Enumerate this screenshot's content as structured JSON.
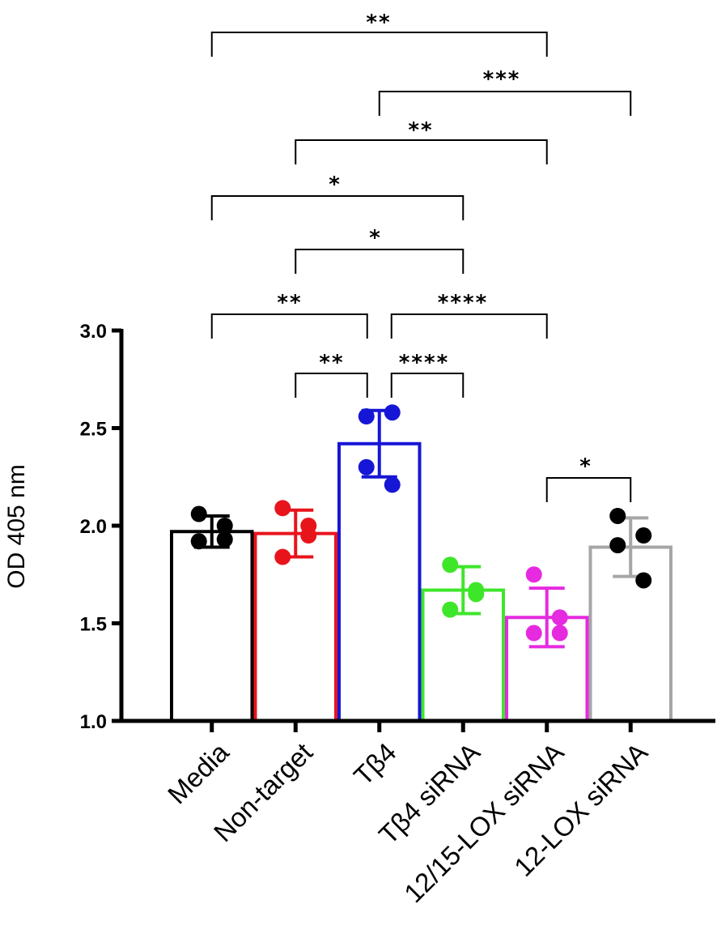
{
  "chart_data": {
    "type": "bar",
    "title": "",
    "xlabel": "",
    "ylabel": "OD 405 nm",
    "ylim": [
      1.0,
      3.0
    ],
    "yticks": [
      {
        "value": 1.0,
        "label": "1.0"
      },
      {
        "value": 1.5,
        "label": "1.5"
      },
      {
        "value": 2.0,
        "label": "2.0"
      },
      {
        "value": 2.5,
        "label": "2.5"
      },
      {
        "value": 3.0,
        "label": "3.0"
      }
    ],
    "categories": [
      "Media",
      "Non-target",
      "Tβ4",
      "Tβ4 siRNA",
      "12/15-LOX siRNA",
      "12-LOX siRNA"
    ],
    "colors": [
      "#000000",
      "#e8141c",
      "#1616d6",
      "#3ee62a",
      "#e62ae0",
      "#a6a6a6"
    ],
    "values": [
      1.97,
      1.96,
      2.42,
      1.67,
      1.53,
      1.89
    ],
    "sd": [
      0.08,
      0.12,
      0.17,
      0.12,
      0.15,
      0.15
    ],
    "points": [
      [
        2.06,
        2.0,
        1.92,
        1.93
      ],
      [
        2.09,
        2.0,
        1.84,
        1.95
      ],
      [
        2.56,
        2.58,
        2.3,
        2.21
      ],
      [
        1.8,
        1.67,
        1.57,
        1.65
      ],
      [
        1.75,
        1.53,
        1.45,
        1.45
      ],
      [
        2.05,
        1.95,
        1.9,
        1.72
      ]
    ],
    "point_color_override": {
      "5": "#000000"
    },
    "comparisons": [
      {
        "from": 0,
        "to": 4,
        "label": "**"
      },
      {
        "from": 2,
        "to": 5,
        "label": "***"
      },
      {
        "from": 1,
        "to": 4,
        "label": "**"
      },
      {
        "from": 0,
        "to": 3,
        "label": "*"
      },
      {
        "from": 1,
        "to": 3,
        "label": "*"
      },
      {
        "from": 0,
        "to": 2,
        "label": "**"
      },
      {
        "from": 2,
        "to": 4,
        "label": "****"
      },
      {
        "from": 1,
        "to": 2,
        "label": "**"
      },
      {
        "from": 2,
        "to": 3,
        "label": "****"
      },
      {
        "from": 4,
        "to": 5,
        "label": "*"
      }
    ]
  }
}
